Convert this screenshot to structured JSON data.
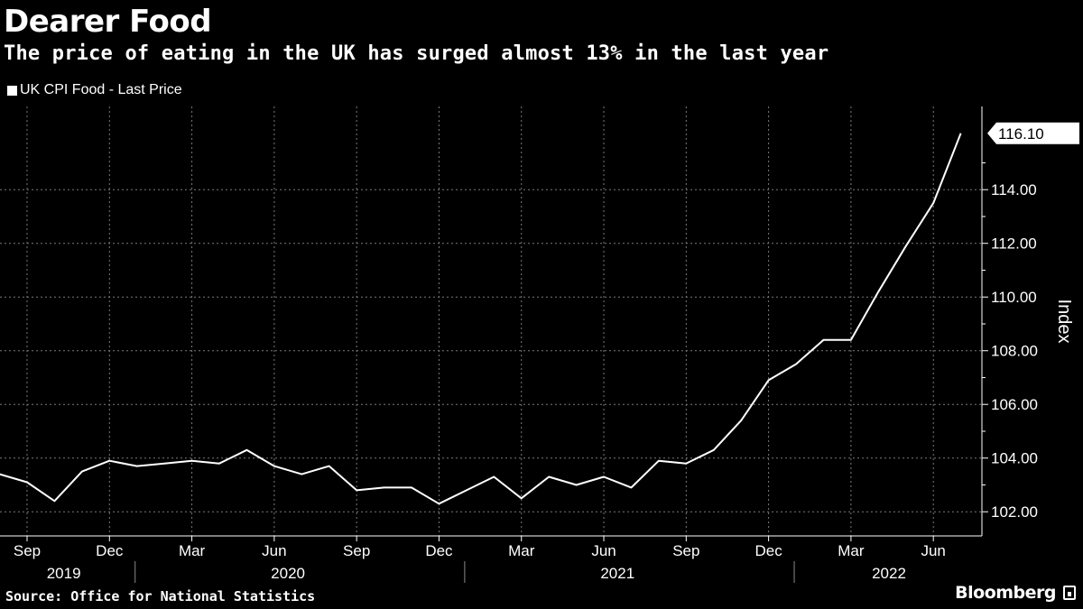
{
  "title": "Dearer Food",
  "subtitle": "The price of eating in the UK has surged almost 13% in the last year",
  "legend": {
    "label": "UK CPI Food - Last Price"
  },
  "source": "Source: Office for National Statistics",
  "brand": {
    "name": "Bloomberg",
    "icon": "bloomberg-logo-icon"
  },
  "chart_data": {
    "type": "line",
    "ylabel": "Index",
    "ylim": [
      101.1,
      117.1
    ],
    "y_ticks": [
      "102.00",
      "104.00",
      "106.00",
      "108.00",
      "110.00",
      "112.00",
      "114.00"
    ],
    "y_tick_values": [
      102,
      104,
      106,
      108,
      110,
      112,
      114
    ],
    "last_value_label": "116.10",
    "x_tick_labels": [
      "Sep",
      "Dec",
      "Mar",
      "Jun",
      "Sep",
      "Dec",
      "Mar",
      "Jun",
      "Sep",
      "Dec",
      "Mar",
      "Jun"
    ],
    "x_tick_dates": [
      "2019-09",
      "2019-12",
      "2020-03",
      "2020-06",
      "2020-09",
      "2020-12",
      "2021-03",
      "2021-06",
      "2021-09",
      "2021-12",
      "2022-03",
      "2022-06"
    ],
    "year_labels": [
      "2019",
      "2020",
      "2021",
      "2022"
    ],
    "grid": true,
    "series": [
      {
        "name": "UK CPI Food - Last Price",
        "color": "#ffffff",
        "x": [
          "2019-08",
          "2019-09",
          "2019-10",
          "2019-11",
          "2019-12",
          "2020-01",
          "2020-02",
          "2020-03",
          "2020-04",
          "2020-05",
          "2020-06",
          "2020-07",
          "2020-08",
          "2020-09",
          "2020-10",
          "2020-11",
          "2020-12",
          "2021-01",
          "2021-02",
          "2021-03",
          "2021-04",
          "2021-05",
          "2021-06",
          "2021-07",
          "2021-08",
          "2021-09",
          "2021-10",
          "2021-11",
          "2021-12",
          "2022-01",
          "2022-02",
          "2022-03",
          "2022-04",
          "2022-05",
          "2022-06",
          "2022-07"
        ],
        "values": [
          103.4,
          103.1,
          102.4,
          103.5,
          103.9,
          103.7,
          103.8,
          103.9,
          103.8,
          104.3,
          103.7,
          103.4,
          103.7,
          102.8,
          102.9,
          102.9,
          102.3,
          102.8,
          103.3,
          102.5,
          103.3,
          103.0,
          103.3,
          102.9,
          103.9,
          103.8,
          104.3,
          105.4,
          106.9,
          107.5,
          108.4,
          108.4,
          110.2,
          111.9,
          113.5,
          116.1
        ]
      }
    ]
  }
}
